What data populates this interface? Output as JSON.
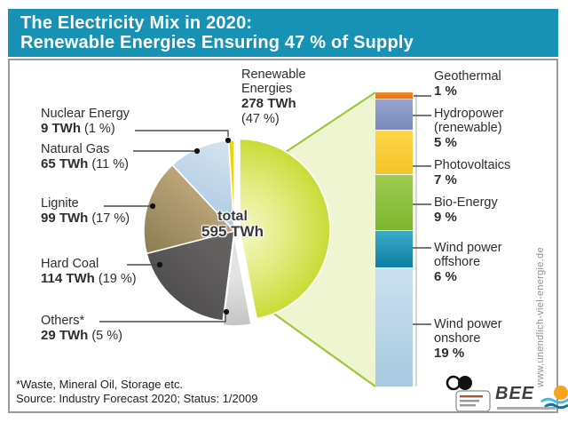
{
  "header": {
    "title_line1": "The Electricity Mix in 2020:",
    "title_line2": "Renewable Energies Ensuring 47 % of Supply",
    "bg_color": "#1792b4"
  },
  "pie_center": {
    "line1": "total",
    "line2": "595 TWh"
  },
  "left_labels": [
    {
      "name": "Nuclear Energy",
      "value": "9 TWh",
      "pct": "(1 %)"
    },
    {
      "name": "Natural Gas",
      "value": "65 TWh",
      "pct": "(11 %)"
    },
    {
      "name": "Lignite",
      "value": "99 TWh",
      "pct": "(17 %)"
    },
    {
      "name": "Hard Coal",
      "value": "114 TWh",
      "pct": "(19 %)"
    },
    {
      "name": "Others*",
      "value": "29 TWh",
      "pct": "(5 %)"
    }
  ],
  "renewable_callout": {
    "name": "Renewable\nEnergies",
    "value": "278 TWh",
    "pct": "(47 %)"
  },
  "bar_labels": [
    {
      "name": "Geothermal",
      "pct": "1 %"
    },
    {
      "name": "Hydropower\n(renewable)",
      "pct": "5 %"
    },
    {
      "name": "Photovoltaics",
      "pct": "7 %"
    },
    {
      "name": "Bio-Energy",
      "pct": "9 %"
    },
    {
      "name": "Wind power\noffshore",
      "pct": "6 %"
    },
    {
      "name": "Wind power\nonshore",
      "pct": "19 %"
    }
  ],
  "footnote": {
    "line1": "*Waste, Mineral Oil, Storage etc.",
    "line2": "Source: Industry Forecast 2020; Status: 1/2009"
  },
  "watermark": "www.unendlich-viel-energie.de",
  "logos": {
    "bee_text": "BEE"
  },
  "chart_data": [
    {
      "type": "pie",
      "title": "The Electricity Mix in 2020",
      "total_twh": 595,
      "unit": "TWh",
      "slices": [
        {
          "key": "renewables",
          "label": "Renewable Energies",
          "twh": 278,
          "pct": 47,
          "color": "#c6da2e"
        },
        {
          "key": "others",
          "label": "Others (Waste, Mineral Oil, Storage etc.)",
          "twh": 29,
          "pct": 5,
          "color": "#d2d2d2"
        },
        {
          "key": "coal",
          "label": "Hard Coal",
          "twh": 114,
          "pct": 19,
          "color": "#555353"
        },
        {
          "key": "lignite",
          "label": "Lignite",
          "twh": 99,
          "pct": 17,
          "color": "#ab9569"
        },
        {
          "key": "gas",
          "label": "Natural Gas",
          "twh": 65,
          "pct": 11,
          "color": "#b9d2e6"
        },
        {
          "key": "nuclear",
          "label": "Nuclear Energy",
          "twh": 9,
          "pct": 1,
          "color": "#f1d400"
        }
      ]
    },
    {
      "type": "bar",
      "subtype": "stacked-column",
      "title": "Renewable Energies 278 TWh (47 %)",
      "unit": "%",
      "segments": [
        {
          "key": "geothermal",
          "label": "Geothermal",
          "pct": 1,
          "c1": "#ef8c2a",
          "c2": "#e2731a"
        },
        {
          "key": "hydro",
          "label": "Hydropower (renewable)",
          "pct": 5,
          "c1": "#98a5d0",
          "c2": "#7a89bd"
        },
        {
          "key": "pv",
          "label": "Photovoltaics",
          "pct": 7,
          "c1": "#fdd648",
          "c2": "#f5c32a"
        },
        {
          "key": "bio",
          "label": "Bio-Energy",
          "pct": 9,
          "c1": "#a0cb52",
          "c2": "#7cb62f"
        },
        {
          "key": "wind-offshore",
          "label": "Wind power offshore",
          "pct": 6,
          "c1": "#3dabc7",
          "c2": "#0d7ea4"
        },
        {
          "key": "wind-onshore",
          "label": "Wind power onshore",
          "pct": 19,
          "c1": "#cce1ef",
          "c2": "#a6c9e1"
        }
      ]
    }
  ]
}
